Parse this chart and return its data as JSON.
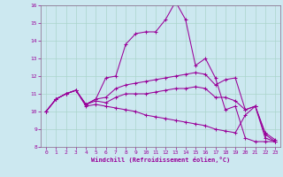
{
  "xlabel": "Windchill (Refroidissement éolien,°C)",
  "background_color": "#cce8f0",
  "grid_color": "#aad4cc",
  "line_color": "#990099",
  "spine_color": "#886688",
  "xlim": [
    -0.5,
    23.5
  ],
  "ylim": [
    8,
    16
  ],
  "yticks": [
    8,
    9,
    10,
    11,
    12,
    13,
    14,
    15,
    16
  ],
  "xticks": [
    0,
    1,
    2,
    3,
    4,
    5,
    6,
    7,
    8,
    9,
    10,
    11,
    12,
    13,
    14,
    15,
    16,
    17,
    18,
    19,
    20,
    21,
    22,
    23
  ],
  "lines": [
    {
      "x": [
        0,
        1,
        2,
        3,
        4,
        5,
        6,
        7,
        8,
        9,
        10,
        11,
        12,
        13,
        14,
        15,
        16,
        17,
        18,
        19,
        20,
        21,
        22,
        23
      ],
      "y": [
        10.0,
        10.7,
        11.0,
        11.2,
        10.4,
        10.7,
        11.9,
        12.0,
        13.8,
        14.4,
        14.5,
        14.5,
        15.2,
        16.2,
        15.2,
        12.6,
        13.0,
        11.9,
        10.1,
        10.3,
        8.5,
        8.3,
        8.3,
        8.3
      ]
    },
    {
      "x": [
        0,
        1,
        2,
        3,
        4,
        5,
        6,
        7,
        8,
        9,
        10,
        11,
        12,
        13,
        14,
        15,
        16,
        17,
        18,
        19,
        20,
        21,
        22,
        23
      ],
      "y": [
        10.0,
        10.7,
        11.0,
        11.2,
        10.4,
        10.7,
        10.8,
        11.3,
        11.5,
        11.6,
        11.7,
        11.8,
        11.9,
        12.0,
        12.1,
        12.2,
        12.1,
        11.5,
        11.8,
        11.9,
        10.1,
        10.3,
        8.8,
        8.4
      ]
    },
    {
      "x": [
        0,
        1,
        2,
        3,
        4,
        5,
        6,
        7,
        8,
        9,
        10,
        11,
        12,
        13,
        14,
        15,
        16,
        17,
        18,
        19,
        20,
        21,
        22,
        23
      ],
      "y": [
        10.0,
        10.7,
        11.0,
        11.2,
        10.4,
        10.6,
        10.5,
        10.8,
        11.0,
        11.0,
        11.0,
        11.1,
        11.2,
        11.3,
        11.3,
        11.4,
        11.3,
        10.8,
        10.8,
        10.6,
        10.1,
        10.3,
        8.7,
        8.3
      ]
    },
    {
      "x": [
        0,
        1,
        2,
        3,
        4,
        5,
        6,
        7,
        8,
        9,
        10,
        11,
        12,
        13,
        14,
        15,
        16,
        17,
        18,
        19,
        20,
        21,
        22,
        23
      ],
      "y": [
        10.0,
        10.7,
        11.0,
        11.2,
        10.3,
        10.4,
        10.3,
        10.2,
        10.1,
        10.0,
        9.8,
        9.7,
        9.6,
        9.5,
        9.4,
        9.3,
        9.2,
        9.0,
        8.9,
        8.8,
        9.8,
        10.3,
        8.5,
        8.3
      ]
    }
  ]
}
